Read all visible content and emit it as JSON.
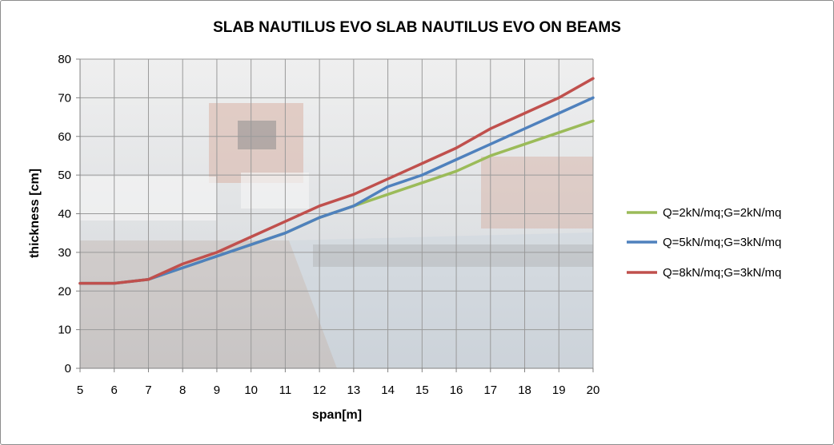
{
  "chart_data": {
    "type": "line",
    "title": "SLAB NAUTILUS EVO SLAB NAUTILUS EVO ON BEAMS",
    "xlabel": "span[m]",
    "ylabel": "thickness [cm]",
    "x": [
      5,
      6,
      7,
      8,
      9,
      10,
      11,
      12,
      13,
      14,
      15,
      16,
      17,
      18,
      19,
      20
    ],
    "xlim": [
      5,
      20
    ],
    "ylim": [
      0,
      80
    ],
    "yticks": [
      0,
      10,
      20,
      30,
      40,
      50,
      60,
      70,
      80
    ],
    "grid": true,
    "legend_position": "right",
    "background": "photo of an interior with slab construction, faded",
    "series": [
      {
        "name": "Q=2kN/mq;G=2kN/mq",
        "color": "#9bbb59",
        "values": [
          22,
          22,
          23,
          26,
          29,
          32,
          35,
          39,
          42,
          45,
          48,
          51,
          55,
          58,
          61,
          64
        ]
      },
      {
        "name": "Q=5kN/mq;G=3kN/mq",
        "color": "#4f81bd",
        "values": [
          22,
          22,
          23,
          26,
          29,
          32,
          35,
          39,
          42,
          47,
          50,
          54,
          58,
          62,
          66,
          70
        ]
      },
      {
        "name": "Q=8kN/mq;G=3kN/mq",
        "color": "#c0504d",
        "values": [
          22,
          22,
          23,
          27,
          30,
          34,
          38,
          42,
          45,
          49,
          53,
          57,
          62,
          66,
          70,
          75
        ]
      }
    ]
  }
}
